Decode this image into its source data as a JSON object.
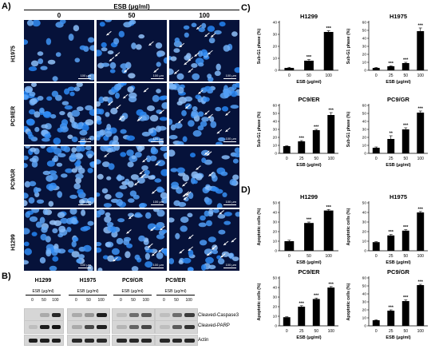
{
  "panel_letters": {
    "a": "A)",
    "b": "B)",
    "c": "C)",
    "d": "D)"
  },
  "panel_a": {
    "treatment_label": "ESB (μg/ml)",
    "concentrations": [
      "0",
      "50",
      "100"
    ],
    "rows": [
      "H1975",
      "PC9/ER",
      "PC9/GR",
      "H1299"
    ],
    "scale_bar_label": "100 μm"
  },
  "panel_b": {
    "cell_lines": [
      "H1299",
      "H1975",
      "PC9/GR",
      "PC9/ER"
    ],
    "treatment_label": "ESB (μg/ml)",
    "concentrations": [
      "0",
      "50",
      "100"
    ],
    "proteins": [
      "Cleaved-Caspase3",
      "Cleaved-PARP",
      "Actin"
    ]
  },
  "chart_data": [
    {
      "panel": "C",
      "type": "bar",
      "title": "H1299",
      "categories": [
        "0",
        "50",
        "100"
      ],
      "values": [
        2,
        8,
        32
      ],
      "errors": [
        0.5,
        1,
        1
      ],
      "significance": [
        "",
        "***",
        "***"
      ],
      "xlabel": "ESB (μg/ml)",
      "ylabel": "Sub-G1 phase (%)",
      "ylim": [
        0,
        40
      ],
      "yticks": [
        0,
        10,
        20,
        30,
        40
      ]
    },
    {
      "panel": "C",
      "type": "bar",
      "title": "H1975",
      "categories": [
        "0",
        "25",
        "50",
        "100"
      ],
      "values": [
        3,
        5,
        9,
        49
      ],
      "errors": [
        0.5,
        0.5,
        1,
        4
      ],
      "significance": [
        "",
        "***",
        "***",
        "***"
      ],
      "xlabel": "ESB (μg/ml)",
      "ylabel": "Sub-G1 phase (%)",
      "ylim": [
        0,
        60
      ],
      "yticks": [
        0,
        10,
        20,
        30,
        40,
        50,
        60
      ]
    },
    {
      "panel": "C",
      "type": "bar",
      "title": "PC9/ER",
      "categories": [
        "0",
        "25",
        "50",
        "100"
      ],
      "values": [
        9,
        15,
        29,
        48
      ],
      "errors": [
        0.5,
        1,
        1,
        3
      ],
      "significance": [
        "",
        "***",
        "***",
        "***"
      ],
      "xlabel": "ESB (μg/ml)",
      "ylabel": "Sub-G1 phase (%)",
      "ylim": [
        0,
        60
      ],
      "yticks": [
        0,
        10,
        20,
        30,
        40,
        50,
        60
      ]
    },
    {
      "panel": "C",
      "type": "bar",
      "title": "PC9/GR",
      "categories": [
        "0",
        "25",
        "50",
        "100"
      ],
      "values": [
        7,
        18,
        30,
        51
      ],
      "errors": [
        1,
        4,
        2,
        2
      ],
      "significance": [
        "",
        "**",
        "***",
        "***"
      ],
      "xlabel": "ESB (μg/ml)",
      "ylabel": "Sub-G1 phase (%)",
      "ylim": [
        0,
        60
      ],
      "yticks": [
        0,
        10,
        20,
        30,
        40,
        50,
        60
      ]
    },
    {
      "panel": "D",
      "type": "bar",
      "title": "H1299",
      "categories": [
        "0",
        "50",
        "100"
      ],
      "values": [
        10,
        29,
        42
      ],
      "errors": [
        1,
        1,
        1
      ],
      "significance": [
        "",
        "***",
        "***"
      ],
      "xlabel": "ESB (μg/ml)",
      "ylabel": "Apoptotic cells (%)",
      "ylim": [
        0,
        50
      ],
      "yticks": [
        0,
        10,
        20,
        30,
        40,
        50
      ]
    },
    {
      "panel": "D",
      "type": "bar",
      "title": "H1975",
      "categories": [
        "0",
        "25",
        "50",
        "100"
      ],
      "values": [
        9,
        16,
        21,
        40
      ],
      "errors": [
        0.5,
        1,
        1,
        1
      ],
      "significance": [
        "",
        "***",
        "***",
        "***"
      ],
      "xlabel": "ESB (μg/ml)",
      "ylabel": "Apoptotic cells (%)",
      "ylim": [
        0,
        50
      ],
      "yticks": [
        0,
        10,
        20,
        30,
        40,
        50
      ]
    },
    {
      "panel": "D",
      "type": "bar",
      "title": "PC9/ER",
      "categories": [
        "0",
        "25",
        "50",
        "100"
      ],
      "values": [
        9,
        20,
        28,
        40
      ],
      "errors": [
        0.5,
        1,
        1,
        1
      ],
      "significance": [
        "",
        "***",
        "***",
        "***"
      ],
      "xlabel": "ESB (μg/ml)",
      "ylabel": "Apoptotic cells (%)",
      "ylim": [
        0,
        50
      ],
      "yticks": [
        0,
        10,
        20,
        30,
        40,
        50
      ]
    },
    {
      "panel": "D",
      "type": "bar",
      "title": "PC9/GR",
      "categories": [
        "0",
        "25",
        "50",
        "100"
      ],
      "values": [
        7,
        19,
        31,
        51
      ],
      "errors": [
        0.5,
        1,
        1.5,
        1
      ],
      "significance": [
        "",
        "***",
        "***",
        "***"
      ],
      "xlabel": "ESB (μg/ml)",
      "ylabel": "Apoptotic cells (%)",
      "ylim": [
        0,
        60
      ],
      "yticks": [
        0,
        10,
        20,
        30,
        40,
        50,
        60
      ]
    }
  ]
}
